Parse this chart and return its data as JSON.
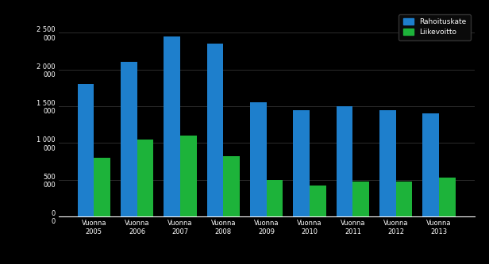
{
  "years": [
    "Vuonna\n2005",
    "Vuonna\n2006",
    "Vuonna\n2007",
    "Vuonna\n2008",
    "Vuonna\n2009",
    "Vuonna\n2010",
    "Vuonna\n2011",
    "Vuonna\n2012",
    "Vuonna\n2013"
  ],
  "rahoituskate": [
    1800,
    2100,
    2450,
    2350,
    1550,
    1450,
    1500,
    1450,
    1400
  ],
  "liikevoitto": [
    800,
    1050,
    1100,
    820,
    500,
    420,
    480,
    470,
    530
  ],
  "bar_color_blue": "#1E7FCC",
  "bar_color_green": "#1DB33A",
  "legend_blue": "Rahoituskate",
  "legend_green": "Liikevoitto",
  "ylim": [
    0,
    2800
  ],
  "yticks": [
    0,
    500,
    1000,
    1500,
    2000,
    2500
  ],
  "ytick_labels": [
    "0\n0",
    "500\n000",
    "1 000\n000",
    "1 500\n000",
    "2 000\n000",
    "2 500\n000"
  ],
  "background_color": "#000000",
  "text_color": "#ffffff",
  "grid_color": "#333333",
  "legend_bg": "#0a0a0a",
  "legend_edge": "#333333"
}
